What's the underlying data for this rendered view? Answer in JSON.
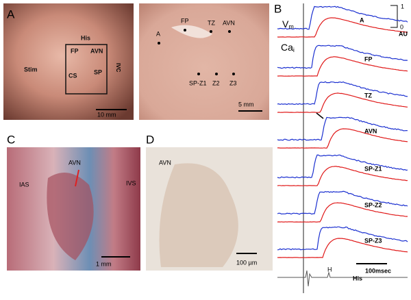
{
  "panels": {
    "a": {
      "label": "A",
      "left_photo": {
        "labels": [
          "His",
          "FP",
          "AVN",
          "CS",
          "SP",
          "Stim",
          "IVC"
        ],
        "scale": "10 mm"
      },
      "right_photo": {
        "labels": [
          "A",
          "FP",
          "TZ",
          "AVN",
          "SP-Z1",
          "Z2",
          "Z3"
        ],
        "scale": "5 mm"
      }
    },
    "b": {
      "label": "B",
      "vm": "V",
      "vm_sub": "m",
      "ca": "Ca",
      "ca_sub": "i",
      "scale_top": "1",
      "scale_bottom": "0",
      "scale_unit": "AU",
      "traces": [
        "A",
        "FP",
        "TZ",
        "AVN",
        "SP-Z1",
        "SP-Z2",
        "SP-Z3"
      ],
      "time_scale": "100msec",
      "his_marker": "H",
      "his_label": "His"
    },
    "c": {
      "label": "C",
      "labels": [
        "AVN",
        "IAS",
        "IVS"
      ],
      "scale": "1 mm"
    },
    "d": {
      "label": "D",
      "labels": [
        "AVN"
      ],
      "scale": "100 µm"
    }
  }
}
